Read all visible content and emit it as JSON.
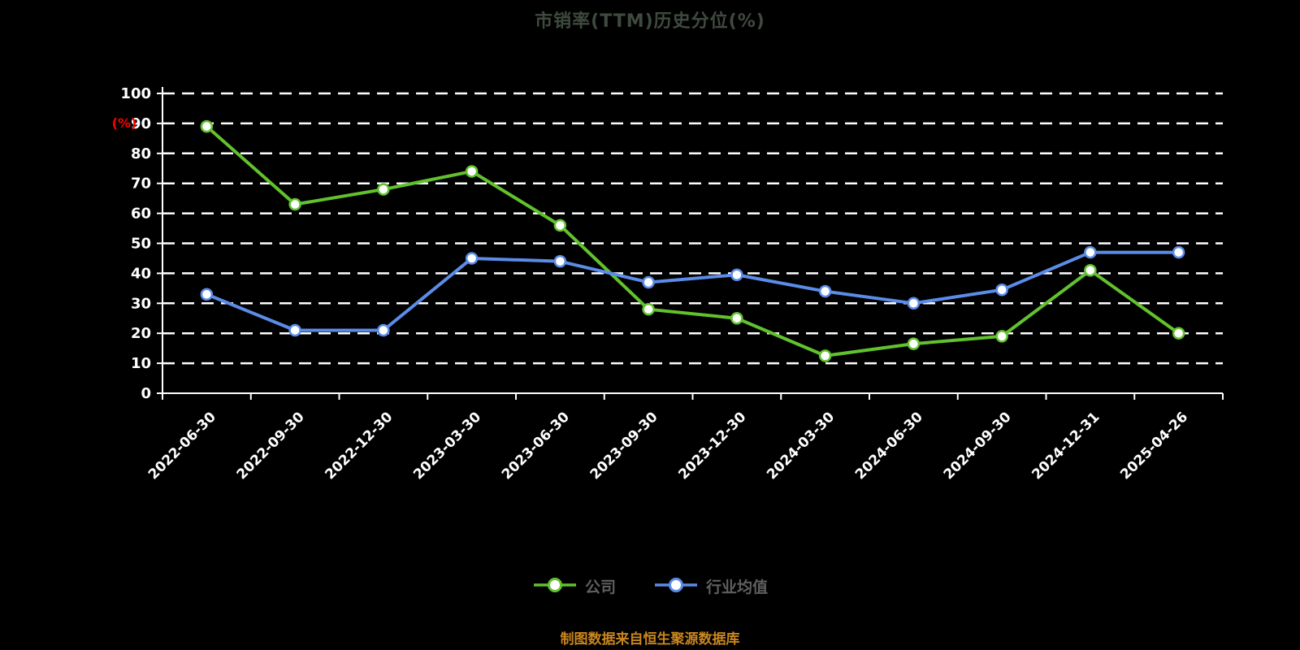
{
  "title": "市销率(TTM)历史分位(%)",
  "footer_note": "制图数据来自恒生聚源数据库",
  "colors": {
    "background": "#000000",
    "title": "#3f4a3f",
    "axis": "#ffffff",
    "grid": "#ffffff",
    "tick_label": "#ffffff",
    "ylabel": "#ff0000",
    "legend_text": "#5f5f5f",
    "footer": "#c9861e",
    "company_series": "#62c22e",
    "industry_series": "#5b8ce8",
    "marker_fill": "#ffffff"
  },
  "chart_data": {
    "type": "line",
    "title": "市销率(TTM)历史分位(%)",
    "xlabel": "",
    "ylabel": "(%)",
    "ylim": [
      0,
      100
    ],
    "ytick_step": 10,
    "grid": "horizontal-dashed",
    "legend_position": "bottom-center",
    "categories": [
      "2022-06-30",
      "2022-09-30",
      "2022-12-30",
      "2023-03-30",
      "2023-06-30",
      "2023-09-30",
      "2023-12-30",
      "2024-03-30",
      "2024-06-30",
      "2024-09-30",
      "2024-12-31",
      "2025-04-26"
    ],
    "series": [
      {
        "name": "公司",
        "color": "#62c22e",
        "values": [
          89,
          63,
          68,
          74,
          56,
          28,
          25,
          12.5,
          16.5,
          19,
          41,
          20
        ]
      },
      {
        "name": "行业均值",
        "color": "#5b8ce8",
        "values": [
          33,
          21,
          21,
          45,
          44,
          37,
          39.5,
          34,
          30,
          34.5,
          47,
          47
        ]
      }
    ]
  }
}
